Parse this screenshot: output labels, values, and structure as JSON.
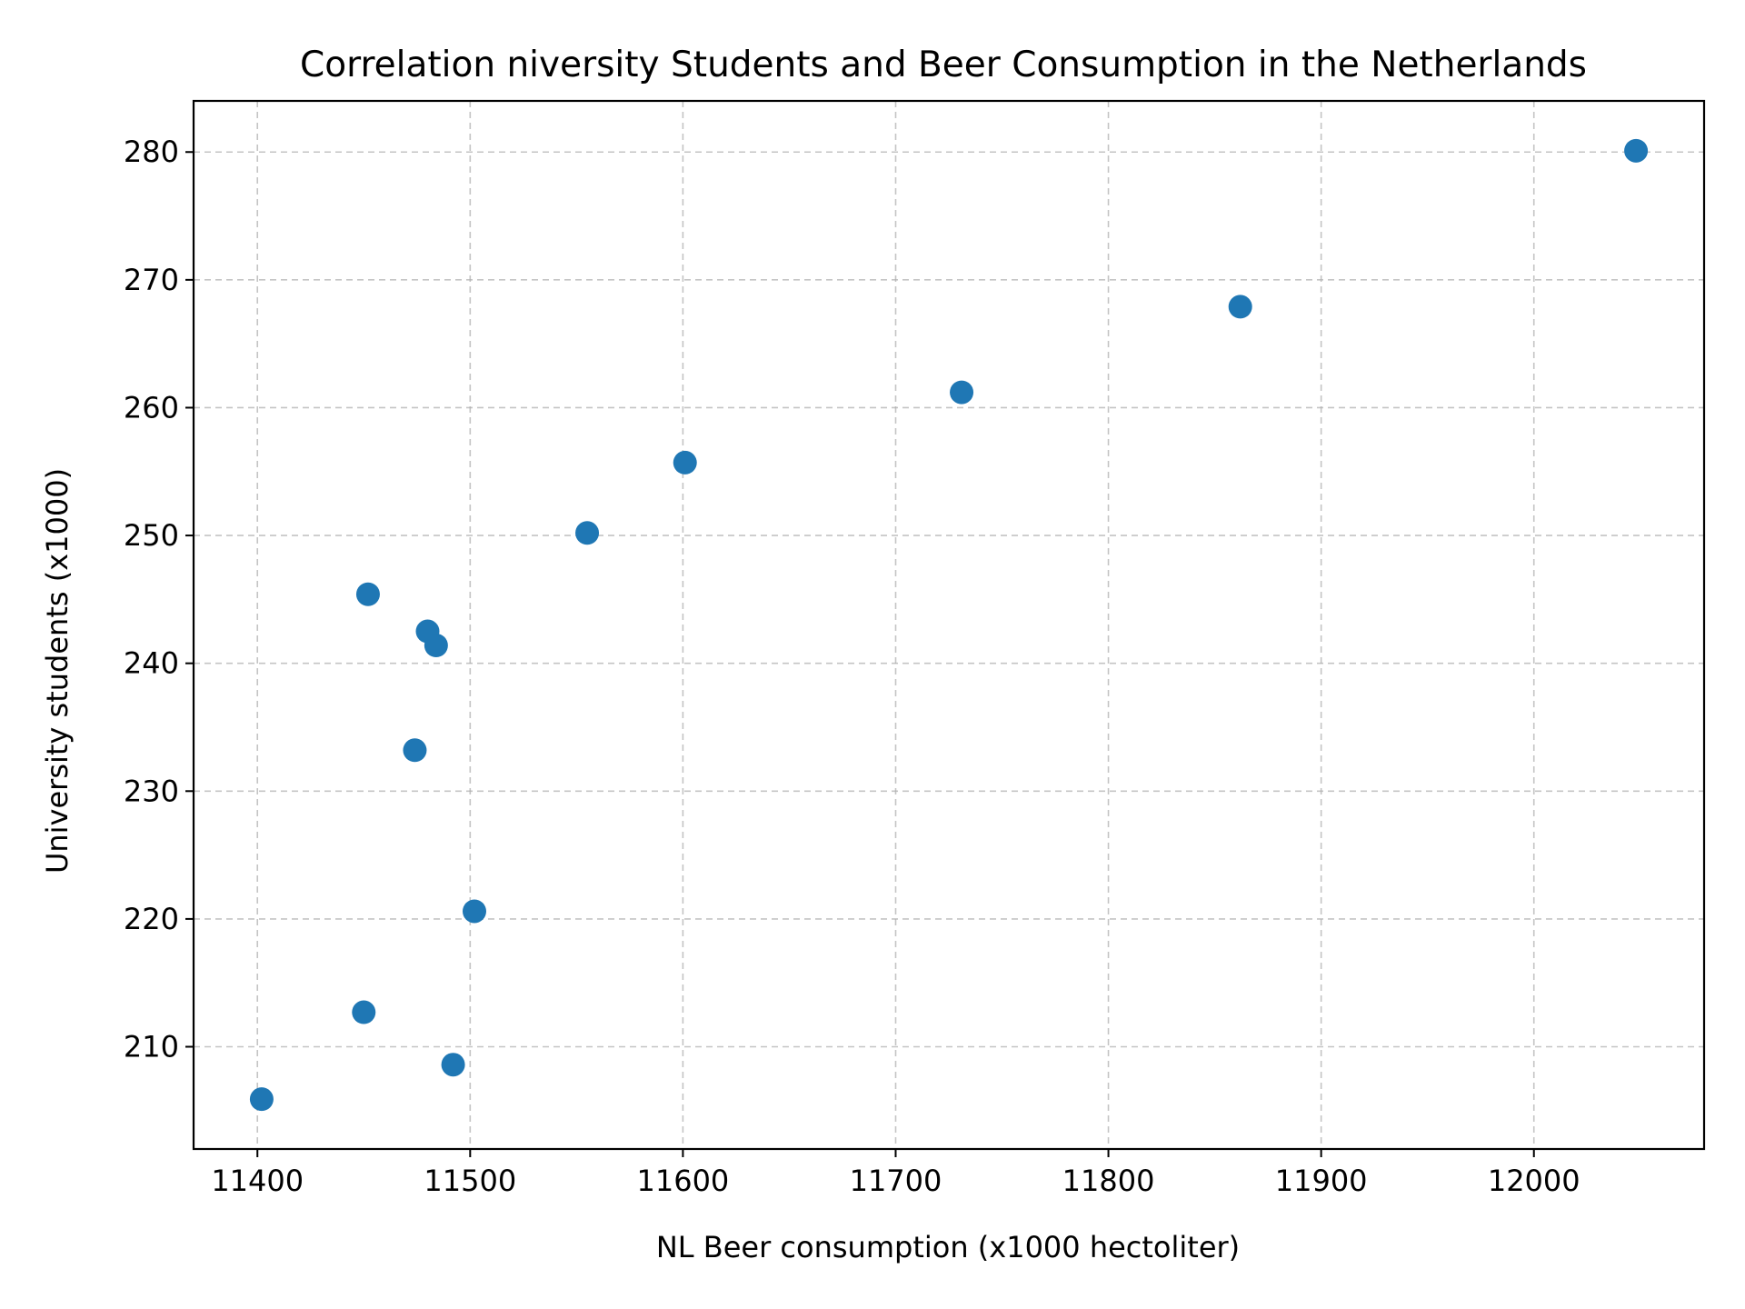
{
  "chart_data": {
    "type": "scatter",
    "title": "Correlation niversity Students and Beer Consumption in the Netherlands",
    "xlabel": "NL Beer consumption (x1000 hectoliter)",
    "ylabel": "University  students (x1000)",
    "xlim": [
      11370,
      12080
    ],
    "ylim": [
      202,
      284
    ],
    "xticks": [
      11400,
      11500,
      11600,
      11700,
      11800,
      11900,
      12000
    ],
    "yticks": [
      210,
      220,
      230,
      240,
      250,
      260,
      270,
      280
    ],
    "grid": true,
    "grid_style": "dashed",
    "legend": "none",
    "marker_color": "#1f77b4",
    "points": [
      {
        "x": 11402,
        "y": 205.9
      },
      {
        "x": 11450,
        "y": 212.7
      },
      {
        "x": 11452,
        "y": 245.4
      },
      {
        "x": 11474,
        "y": 233.2
      },
      {
        "x": 11480,
        "y": 242.5
      },
      {
        "x": 11484,
        "y": 241.4
      },
      {
        "x": 11492,
        "y": 208.6
      },
      {
        "x": 11502,
        "y": 220.6
      },
      {
        "x": 11555,
        "y": 250.2
      },
      {
        "x": 11601,
        "y": 255.7
      },
      {
        "x": 11731,
        "y": 261.2
      },
      {
        "x": 11862,
        "y": 267.9
      },
      {
        "x": 12048,
        "y": 280.1
      }
    ]
  }
}
